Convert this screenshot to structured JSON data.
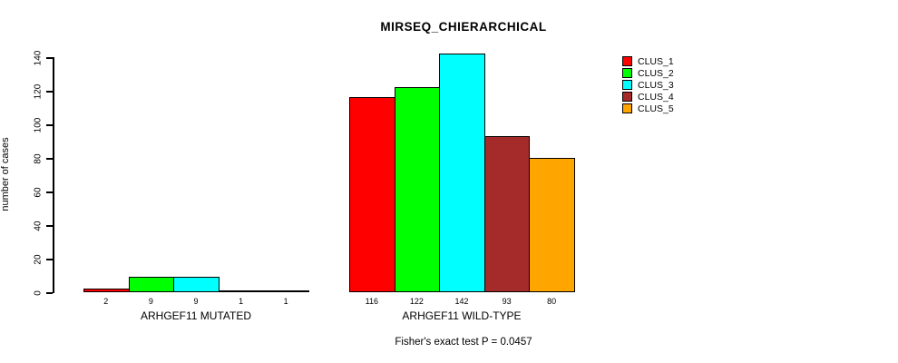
{
  "title": "MIRSEQ_CHIERARCHICAL",
  "caption": "Fisher's exact test P = 0.0457",
  "y_axis": {
    "label": "number of cases",
    "ticks": [
      0,
      20,
      40,
      60,
      80,
      100,
      120,
      140
    ]
  },
  "legend": {
    "items": [
      {
        "label": "CLUS_1",
        "color": "#ff0000"
      },
      {
        "label": "CLUS_2",
        "color": "#00ff00"
      },
      {
        "label": "CLUS_3",
        "color": "#00ffff"
      },
      {
        "label": "CLUS_4",
        "color": "#a52a2a"
      },
      {
        "label": "CLUS_5",
        "color": "#ffa500"
      }
    ]
  },
  "chart_data": {
    "type": "bar",
    "title": "MIRSEQ_CHIERARCHICAL",
    "xlabel": "",
    "ylabel": "number of cases",
    "ylim": [
      0,
      140
    ],
    "yticks": [
      0,
      20,
      40,
      60,
      80,
      100,
      120,
      140
    ],
    "grid": false,
    "legend_position": "top-right",
    "categories": [
      "CLUS_1",
      "CLUS_2",
      "CLUS_3",
      "CLUS_4",
      "CLUS_5"
    ],
    "series_colors": [
      "#ff0000",
      "#00ff00",
      "#00ffff",
      "#a52a2a",
      "#ffa500"
    ],
    "groups": [
      {
        "label": "ARHGEF11 MUTATED",
        "values": [
          2,
          9,
          9,
          1,
          1
        ]
      },
      {
        "label": "ARHGEF11 WILD-TYPE",
        "values": [
          116,
          122,
          142,
          93,
          80
        ]
      }
    ],
    "annotation": "Fisher's exact test P = 0.0457"
  }
}
